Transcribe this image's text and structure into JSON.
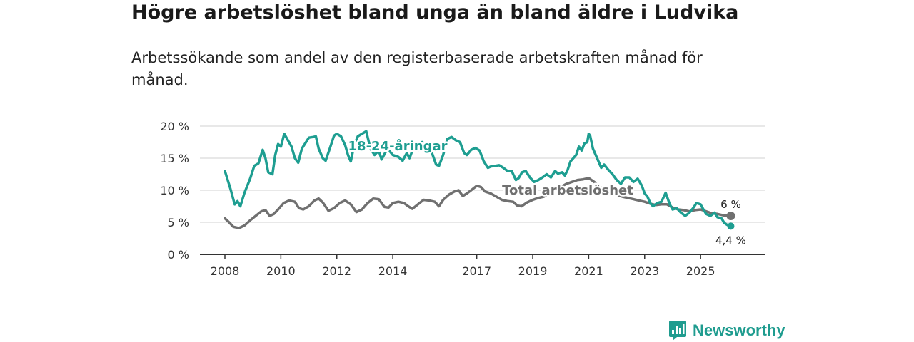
{
  "header": {
    "title": "Högre arbetslöshet bland unga än bland äldre i Ludvika",
    "subtitle": "Arbetssökande som andel av den registerbaserade arbetskraften månad för månad."
  },
  "brand": {
    "name": "Newsworthy",
    "color": "#1f9c8f"
  },
  "colors": {
    "youth": "#1e9e91",
    "total": "#707070",
    "grid": "#d9d9d9",
    "axis": "#333333"
  },
  "chart_data": {
    "type": "line",
    "title": "Högre arbetslöshet bland unga än bland äldre i Ludvika",
    "subtitle": "Arbetssökande som andel av den registerbaserade arbetskraften månad för månad.",
    "xlabel": "",
    "ylabel": "",
    "xlim": [
      2008.0,
      2026.4
    ],
    "ylim": [
      0,
      20
    ],
    "y_ticks": [
      0,
      5,
      10,
      15,
      20
    ],
    "y_tick_labels": [
      "0 %",
      "5 %",
      "10 %",
      "15 %",
      "20 %"
    ],
    "x_ticks": [
      2008,
      2010,
      2012,
      2014,
      2017,
      2019,
      2021,
      2023,
      2025
    ],
    "x_tick_labels": [
      "2008",
      "2010",
      "2012",
      "2014",
      "2017",
      "2019",
      "2021",
      "2023",
      "2025"
    ],
    "series": [
      {
        "name": "18-24-åringar",
        "label": "18-24-åringar",
        "color": "#1e9e91",
        "end_value": 4.4,
        "end_label": "4,4 %",
        "points": [
          [
            2008.0,
            13.0
          ],
          [
            2008.2,
            10.2
          ],
          [
            2008.35,
            7.8
          ],
          [
            2008.45,
            8.3
          ],
          [
            2008.55,
            7.5
          ],
          [
            2008.7,
            9.6
          ],
          [
            2008.9,
            11.8
          ],
          [
            2009.05,
            13.8
          ],
          [
            2009.2,
            14.2
          ],
          [
            2009.35,
            16.3
          ],
          [
            2009.45,
            15.0
          ],
          [
            2009.55,
            12.8
          ],
          [
            2009.7,
            12.5
          ],
          [
            2009.8,
            15.5
          ],
          [
            2009.9,
            17.2
          ],
          [
            2010.0,
            16.8
          ],
          [
            2010.12,
            18.8
          ],
          [
            2010.25,
            17.8
          ],
          [
            2010.38,
            16.8
          ],
          [
            2010.5,
            15.0
          ],
          [
            2010.62,
            14.3
          ],
          [
            2010.75,
            16.5
          ],
          [
            2010.9,
            17.5
          ],
          [
            2011.0,
            18.2
          ],
          [
            2011.15,
            18.3
          ],
          [
            2011.25,
            18.4
          ],
          [
            2011.35,
            16.5
          ],
          [
            2011.5,
            15.0
          ],
          [
            2011.6,
            14.6
          ],
          [
            2011.75,
            16.5
          ],
          [
            2011.9,
            18.5
          ],
          [
            2012.0,
            18.8
          ],
          [
            2012.15,
            18.4
          ],
          [
            2012.3,
            17.0
          ],
          [
            2012.4,
            15.5
          ],
          [
            2012.5,
            14.5
          ],
          [
            2012.62,
            17.0
          ],
          [
            2012.75,
            18.4
          ],
          [
            2012.9,
            18.8
          ],
          [
            2013.05,
            19.2
          ],
          [
            2013.2,
            16.5
          ],
          [
            2013.35,
            15.5
          ],
          [
            2013.5,
            16.2
          ],
          [
            2013.6,
            14.8
          ],
          [
            2013.75,
            16.0
          ],
          [
            2013.85,
            16.3
          ],
          [
            2014.0,
            15.5
          ],
          [
            2014.2,
            15.2
          ],
          [
            2014.35,
            14.6
          ],
          [
            2014.5,
            15.8
          ],
          [
            2014.6,
            15.0
          ],
          [
            2014.75,
            16.8
          ],
          [
            2014.9,
            16.2
          ],
          [
            2015.05,
            17.5
          ],
          [
            2015.25,
            16.8
          ],
          [
            2015.4,
            15.8
          ],
          [
            2015.55,
            14.0
          ],
          [
            2015.65,
            13.8
          ],
          [
            2015.8,
            15.5
          ],
          [
            2015.95,
            18.0
          ],
          [
            2016.1,
            18.3
          ],
          [
            2016.25,
            17.8
          ],
          [
            2016.4,
            17.5
          ],
          [
            2016.55,
            15.8
          ],
          [
            2016.65,
            15.5
          ],
          [
            2016.8,
            16.3
          ],
          [
            2016.95,
            16.6
          ],
          [
            2017.1,
            16.2
          ],
          [
            2017.25,
            14.5
          ],
          [
            2017.4,
            13.5
          ],
          [
            2017.5,
            13.7
          ],
          [
            2017.65,
            13.8
          ],
          [
            2017.8,
            13.9
          ],
          [
            2017.95,
            13.5
          ],
          [
            2018.1,
            13.0
          ],
          [
            2018.25,
            13.0
          ],
          [
            2018.4,
            11.6
          ],
          [
            2018.5,
            11.9
          ],
          [
            2018.62,
            12.8
          ],
          [
            2018.75,
            13.0
          ],
          [
            2018.9,
            12.0
          ],
          [
            2019.05,
            11.3
          ],
          [
            2019.2,
            11.6
          ],
          [
            2019.35,
            12.0
          ],
          [
            2019.5,
            12.5
          ],
          [
            2019.65,
            12.0
          ],
          [
            2019.8,
            13.0
          ],
          [
            2019.9,
            12.6
          ],
          [
            2020.05,
            12.8
          ],
          [
            2020.15,
            12.3
          ],
          [
            2020.25,
            13.2
          ],
          [
            2020.35,
            14.5
          ],
          [
            2020.45,
            15.0
          ],
          [
            2020.55,
            15.5
          ],
          [
            2020.65,
            16.8
          ],
          [
            2020.75,
            16.2
          ],
          [
            2020.85,
            17.3
          ],
          [
            2020.95,
            17.5
          ],
          [
            2021.0,
            18.8
          ],
          [
            2021.05,
            18.5
          ],
          [
            2021.15,
            16.5
          ],
          [
            2021.3,
            15.0
          ],
          [
            2021.45,
            13.5
          ],
          [
            2021.55,
            14.0
          ],
          [
            2021.7,
            13.2
          ],
          [
            2021.85,
            12.5
          ],
          [
            2022.0,
            11.6
          ],
          [
            2022.15,
            11.0
          ],
          [
            2022.3,
            12.0
          ],
          [
            2022.45,
            12.0
          ],
          [
            2022.6,
            11.3
          ],
          [
            2022.75,
            11.8
          ],
          [
            2022.9,
            10.7
          ],
          [
            2023.0,
            9.5
          ],
          [
            2023.1,
            9.0
          ],
          [
            2023.2,
            8.0
          ],
          [
            2023.3,
            7.5
          ],
          [
            2023.45,
            8.0
          ],
          [
            2023.6,
            8.2
          ],
          [
            2023.75,
            9.6
          ],
          [
            2023.9,
            7.8
          ],
          [
            2024.0,
            7.0
          ],
          [
            2024.15,
            7.2
          ],
          [
            2024.3,
            6.5
          ],
          [
            2024.45,
            6.0
          ],
          [
            2024.6,
            6.5
          ],
          [
            2024.75,
            7.3
          ],
          [
            2024.85,
            8.0
          ],
          [
            2025.0,
            7.8
          ],
          [
            2025.1,
            7.0
          ],
          [
            2025.2,
            6.3
          ],
          [
            2025.35,
            6.0
          ],
          [
            2025.5,
            6.5
          ],
          [
            2025.6,
            5.8
          ],
          [
            2025.75,
            5.6
          ],
          [
            2025.85,
            4.9
          ],
          [
            2025.95,
            4.6
          ],
          [
            2026.08,
            4.4
          ]
        ]
      },
      {
        "name": "Total arbetslöshet",
        "label": "Total arbetslöshet",
        "color": "#707070",
        "end_value": 6,
        "end_label": "6 %",
        "points": [
          [
            2008.0,
            5.6
          ],
          [
            2008.15,
            5.0
          ],
          [
            2008.3,
            4.3
          ],
          [
            2008.5,
            4.1
          ],
          [
            2008.7,
            4.5
          ],
          [
            2008.9,
            5.3
          ],
          [
            2009.1,
            6.0
          ],
          [
            2009.3,
            6.7
          ],
          [
            2009.45,
            6.9
          ],
          [
            2009.6,
            6.0
          ],
          [
            2009.75,
            6.3
          ],
          [
            2009.9,
            7.0
          ],
          [
            2010.1,
            8.0
          ],
          [
            2010.3,
            8.4
          ],
          [
            2010.5,
            8.2
          ],
          [
            2010.65,
            7.2
          ],
          [
            2010.8,
            7.0
          ],
          [
            2011.0,
            7.5
          ],
          [
            2011.2,
            8.4
          ],
          [
            2011.35,
            8.7
          ],
          [
            2011.5,
            8.1
          ],
          [
            2011.7,
            6.8
          ],
          [
            2011.9,
            7.2
          ],
          [
            2012.1,
            8.0
          ],
          [
            2012.3,
            8.4
          ],
          [
            2012.5,
            7.8
          ],
          [
            2012.7,
            6.6
          ],
          [
            2012.9,
            7.0
          ],
          [
            2013.1,
            8.0
          ],
          [
            2013.3,
            8.7
          ],
          [
            2013.5,
            8.6
          ],
          [
            2013.7,
            7.4
          ],
          [
            2013.85,
            7.3
          ],
          [
            2014.0,
            8.0
          ],
          [
            2014.2,
            8.2
          ],
          [
            2014.4,
            8.0
          ],
          [
            2014.55,
            7.5
          ],
          [
            2014.7,
            7.1
          ],
          [
            2014.9,
            7.8
          ],
          [
            2015.1,
            8.5
          ],
          [
            2015.3,
            8.4
          ],
          [
            2015.5,
            8.2
          ],
          [
            2015.65,
            7.5
          ],
          [
            2015.8,
            8.5
          ],
          [
            2016.0,
            9.3
          ],
          [
            2016.2,
            9.8
          ],
          [
            2016.35,
            10.0
          ],
          [
            2016.5,
            9.1
          ],
          [
            2016.65,
            9.5
          ],
          [
            2016.8,
            10.0
          ],
          [
            2017.0,
            10.7
          ],
          [
            2017.15,
            10.5
          ],
          [
            2017.3,
            9.8
          ],
          [
            2017.5,
            9.5
          ],
          [
            2017.7,
            9.0
          ],
          [
            2017.9,
            8.5
          ],
          [
            2018.1,
            8.3
          ],
          [
            2018.3,
            8.2
          ],
          [
            2018.45,
            7.6
          ],
          [
            2018.6,
            7.5
          ],
          [
            2018.8,
            8.1
          ],
          [
            2019.0,
            8.5
          ],
          [
            2019.2,
            8.8
          ],
          [
            2019.4,
            9.0
          ],
          [
            2019.6,
            9.5
          ],
          [
            2019.8,
            10.3
          ],
          [
            2020.0,
            10.5
          ],
          [
            2020.2,
            11.0
          ],
          [
            2020.4,
            11.3
          ],
          [
            2020.6,
            11.6
          ],
          [
            2020.8,
            11.7
          ],
          [
            2021.0,
            11.9
          ],
          [
            2021.2,
            11.3
          ],
          [
            2021.4,
            10.5
          ],
          [
            2021.6,
            10.0
          ],
          [
            2021.8,
            9.6
          ],
          [
            2022.0,
            9.3
          ],
          [
            2022.2,
            9.0
          ],
          [
            2022.4,
            8.8
          ],
          [
            2022.6,
            8.6
          ],
          [
            2022.8,
            8.4
          ],
          [
            2023.0,
            8.2
          ],
          [
            2023.2,
            7.9
          ],
          [
            2023.4,
            7.7
          ],
          [
            2023.6,
            7.8
          ],
          [
            2023.8,
            7.8
          ],
          [
            2024.0,
            7.3
          ],
          [
            2024.2,
            7.0
          ],
          [
            2024.4,
            6.9
          ],
          [
            2024.6,
            6.7
          ],
          [
            2024.8,
            6.9
          ],
          [
            2025.0,
            7.0
          ],
          [
            2025.2,
            6.7
          ],
          [
            2025.4,
            6.4
          ],
          [
            2025.6,
            6.3
          ],
          [
            2025.8,
            6.1
          ],
          [
            2026.0,
            6.0
          ],
          [
            2026.08,
            6.0
          ]
        ]
      }
    ]
  }
}
